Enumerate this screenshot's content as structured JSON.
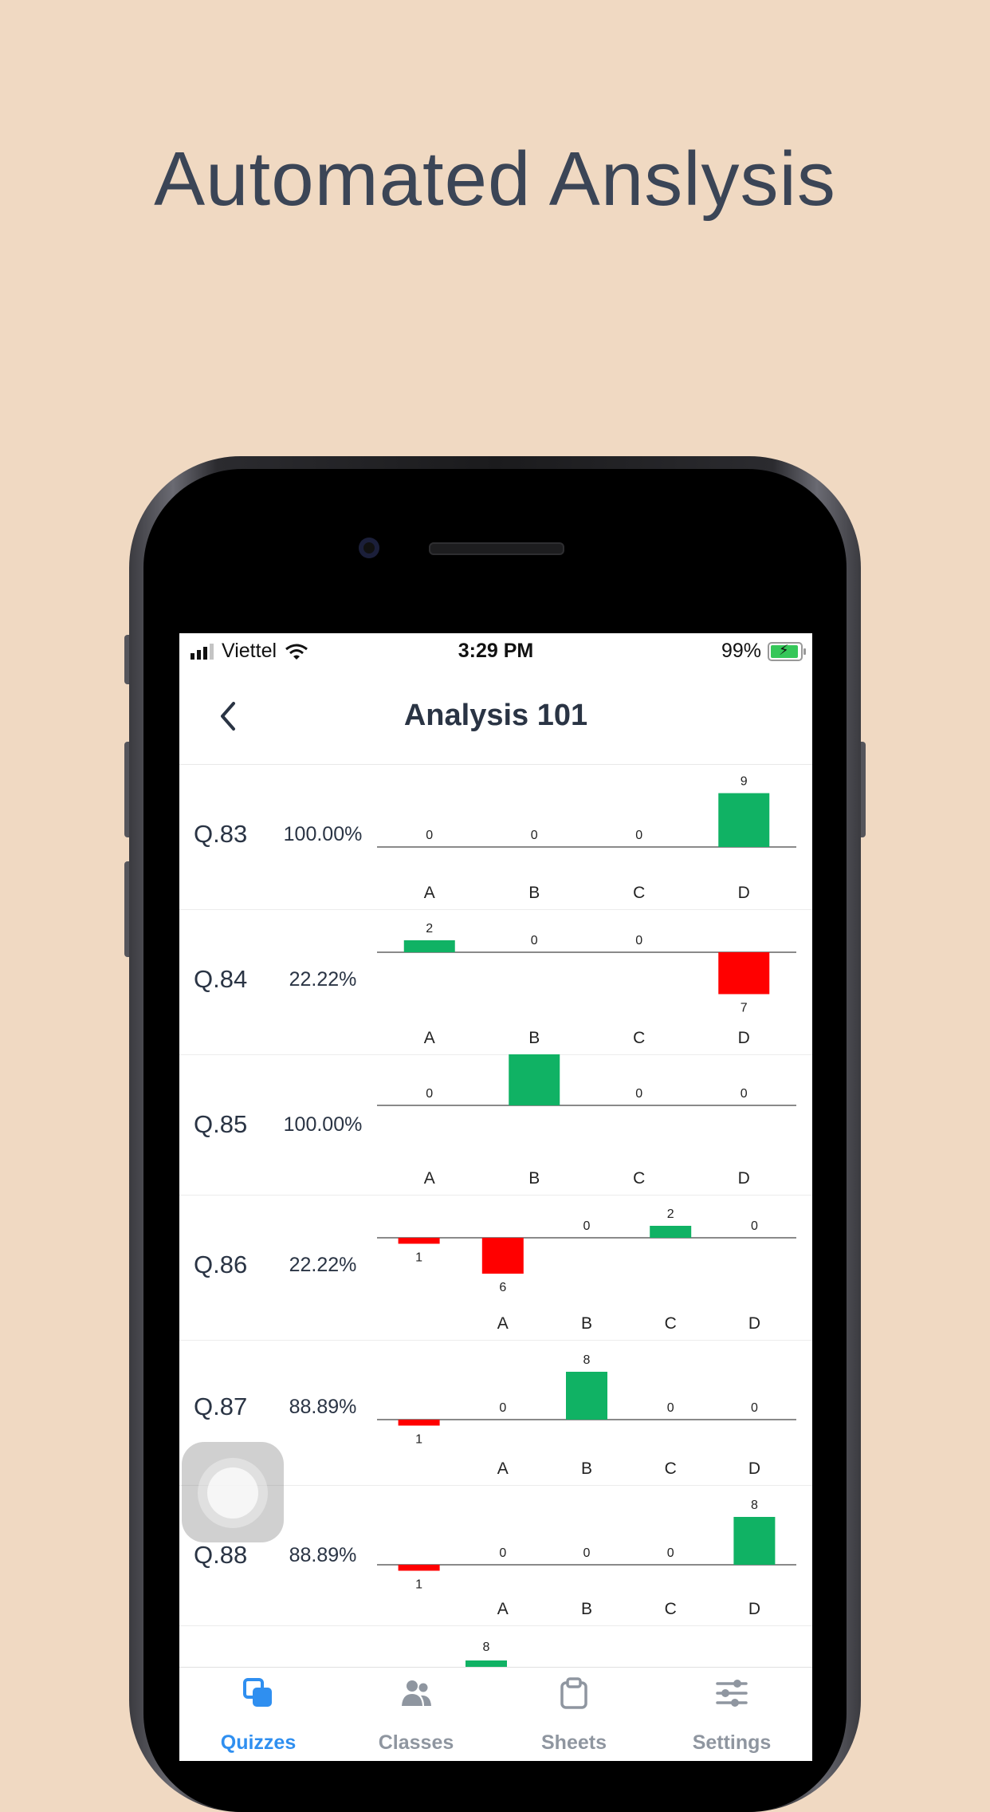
{
  "headline": "Automated Anslysis",
  "status_bar": {
    "carrier": "Viettel",
    "time": "3:29 PM",
    "battery": "99%"
  },
  "nav": {
    "title": "Analysis 101"
  },
  "questions": [
    {
      "label": "Q.83",
      "percent": "100.00%",
      "correct": "D",
      "options": [
        {
          "label": "A",
          "count": 0,
          "sign": "up"
        },
        {
          "label": "B",
          "count": 0,
          "sign": "up"
        },
        {
          "label": "C",
          "count": 0,
          "sign": "up"
        },
        {
          "label": "D",
          "count": 9,
          "sign": "up"
        }
      ]
    },
    {
      "label": "Q.84",
      "percent": "22.22%",
      "correct": "A",
      "options": [
        {
          "label": "A",
          "count": 2,
          "sign": "up"
        },
        {
          "label": "B",
          "count": 0,
          "sign": "up"
        },
        {
          "label": "C",
          "count": 0,
          "sign": "up"
        },
        {
          "label": "D",
          "count": 7,
          "sign": "down"
        }
      ]
    },
    {
      "label": "Q.85",
      "percent": "100.00%",
      "correct": "B",
      "options": [
        {
          "label": "A",
          "count": 0,
          "sign": "up"
        },
        {
          "label": "B",
          "count": 9,
          "sign": "up"
        },
        {
          "label": "C",
          "count": 0,
          "sign": "up"
        },
        {
          "label": "D",
          "count": 0,
          "sign": "up"
        }
      ]
    },
    {
      "label": "Q.86",
      "percent": "22.22%",
      "correct": "C",
      "options": [
        {
          "label": "",
          "count": 1,
          "sign": "down"
        },
        {
          "label": "A",
          "count": 6,
          "sign": "down"
        },
        {
          "label": "B",
          "count": 0,
          "sign": "up"
        },
        {
          "label": "C",
          "count": 2,
          "sign": "up"
        },
        {
          "label": "D",
          "count": 0,
          "sign": "up"
        }
      ]
    },
    {
      "label": "Q.87",
      "percent": "88.89%",
      "correct": "B",
      "options": [
        {
          "label": "",
          "count": 1,
          "sign": "down"
        },
        {
          "label": "A",
          "count": 0,
          "sign": "up"
        },
        {
          "label": "B",
          "count": 8,
          "sign": "up"
        },
        {
          "label": "C",
          "count": 0,
          "sign": "up"
        },
        {
          "label": "D",
          "count": 0,
          "sign": "up"
        }
      ]
    },
    {
      "label": "Q.88",
      "percent": "88.89%",
      "correct": "D",
      "options": [
        {
          "label": "",
          "count": 1,
          "sign": "down"
        },
        {
          "label": "A",
          "count": 0,
          "sign": "up"
        },
        {
          "label": "B",
          "count": 0,
          "sign": "up"
        },
        {
          "label": "C",
          "count": 0,
          "sign": "up"
        },
        {
          "label": "D",
          "count": 8,
          "sign": "up"
        }
      ]
    }
  ],
  "partial_row": {
    "options": [
      {
        "count": 8,
        "sign": "up"
      }
    ]
  },
  "tabs": [
    {
      "label": "Quizzes",
      "icon": "quizzes-icon",
      "active": true
    },
    {
      "label": "Classes",
      "icon": "classes-icon",
      "active": false
    },
    {
      "label": "Sheets",
      "icon": "sheets-icon",
      "active": false
    },
    {
      "label": "Settings",
      "icon": "settings-icon",
      "active": false
    }
  ],
  "colors": {
    "background": "#f0d9c2",
    "headline": "#3b4556",
    "correct_bar": "#10b264",
    "wrong_bar": "#ff0000",
    "tab_active": "#2f8ff0",
    "tab_inactive": "#8f96a0",
    "text": "#2a3444"
  }
}
